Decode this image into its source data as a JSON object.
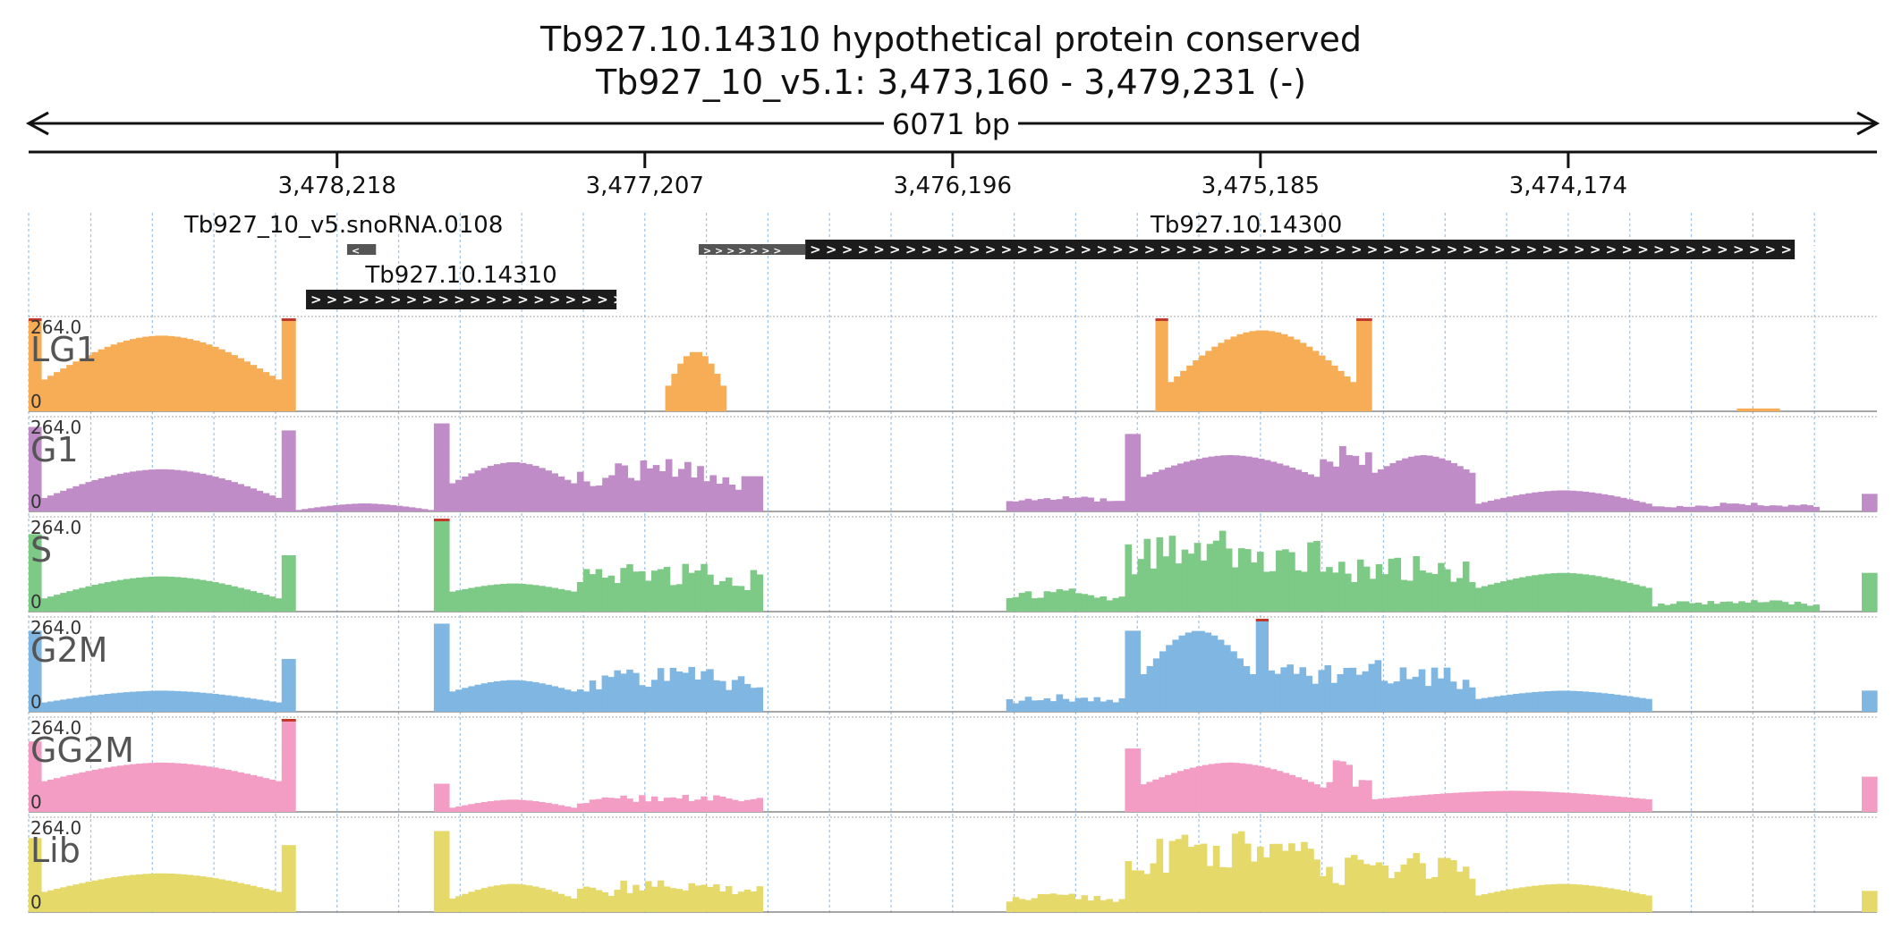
{
  "header": {
    "title": "Tb927.10.14310  hypothetical protein  conserved",
    "locus": "Tb927_10_v5.1: 3,473,160 - 3,479,231 (-)",
    "span": "6071 bp"
  },
  "ruler": {
    "ticks": [
      "3,478,218",
      "3,477,207",
      "3,476,196",
      "3,475,185",
      "3,474,174"
    ]
  },
  "features": [
    {
      "name": "Tb927_10_v5.snoRNA.0108",
      "row": 1,
      "start": 3478185,
      "end": 3478090,
      "color": "#555555",
      "strand": "-"
    },
    {
      "name": "Tb927.10.14310",
      "row": 2,
      "start": 3478320,
      "end": 3477300,
      "color": "#1c1c1c",
      "strand": "+"
    },
    {
      "name": "",
      "row": 1,
      "start": 3477030,
      "end": 3476680,
      "color": "#555555",
      "strand": "+"
    },
    {
      "name": "Tb927.10.14300",
      "row": 1,
      "start": 3476680,
      "end": 3473430,
      "color": "#1c1c1c",
      "strand": "+"
    }
  ],
  "chart_data": {
    "type": "area",
    "xrange": [
      3479231,
      3473160
    ],
    "ymax_label": "264.0",
    "ymin_label": "0",
    "ylim": [
      0,
      264
    ],
    "tracks": [
      {
        "name": "LG1",
        "color": "#f6ad55",
        "segments": [
          {
            "start": 3479231,
            "end": 3479190,
            "base": 264,
            "peak": 0,
            "shape": "flat"
          },
          {
            "start": 3479190,
            "end": 3478400,
            "base": 90,
            "peak": 125,
            "shape": "hump"
          },
          {
            "start": 3478400,
            "end": 3478355,
            "base": 264,
            "peak": 0,
            "shape": "flat"
          },
          {
            "start": 3477140,
            "end": 3476940,
            "base": 60,
            "peak": 110,
            "shape": "hump"
          },
          {
            "start": 3475530,
            "end": 3475490,
            "base": 264,
            "peak": 0,
            "shape": "flat"
          },
          {
            "start": 3475490,
            "end": 3474870,
            "base": 80,
            "peak": 150,
            "shape": "hump"
          },
          {
            "start": 3474870,
            "end": 3474820,
            "base": 264,
            "peak": 0,
            "shape": "flat"
          },
          {
            "start": 3473620,
            "end": 3473480,
            "base": 8,
            "peak": 0,
            "shape": "flat"
          }
        ]
      },
      {
        "name": "G1",
        "color": "#c08cc8",
        "segments": [
          {
            "start": 3479231,
            "end": 3479190,
            "base": 240,
            "peak": 0,
            "shape": "flat"
          },
          {
            "start": 3479190,
            "end": 3478400,
            "base": 40,
            "peak": 80,
            "shape": "hump"
          },
          {
            "start": 3478400,
            "end": 3478355,
            "base": 230,
            "peak": 0,
            "shape": "flat"
          },
          {
            "start": 3478355,
            "end": 3477900,
            "base": 8,
            "peak": 15,
            "shape": "hump"
          },
          {
            "start": 3477900,
            "end": 3477850,
            "base": 250,
            "peak": 0,
            "shape": "flat"
          },
          {
            "start": 3477850,
            "end": 3477430,
            "base": 80,
            "peak": 60,
            "shape": "hump"
          },
          {
            "start": 3477430,
            "end": 3476890,
            "base": 120,
            "peak": 60,
            "shape": "spiky"
          },
          {
            "start": 3476890,
            "end": 3476820,
            "base": 100,
            "peak": 0,
            "shape": "flat"
          },
          {
            "start": 3476020,
            "end": 3475630,
            "base": 30,
            "peak": 40,
            "shape": "spiky"
          },
          {
            "start": 3475630,
            "end": 3475580,
            "base": 220,
            "peak": 0,
            "shape": "flat"
          },
          {
            "start": 3475580,
            "end": 3474990,
            "base": 100,
            "peak": 60,
            "shape": "hump"
          },
          {
            "start": 3474990,
            "end": 3474820,
            "base": 200,
            "peak": 40,
            "shape": "spiky"
          },
          {
            "start": 3474820,
            "end": 3474480,
            "base": 110,
            "peak": 50,
            "shape": "hump"
          },
          {
            "start": 3474480,
            "end": 3473900,
            "base": 25,
            "peak": 35,
            "shape": "hump"
          },
          {
            "start": 3473900,
            "end": 3473350,
            "base": 20,
            "peak": 10,
            "shape": "spiky"
          },
          {
            "start": 3473210,
            "end": 3473160,
            "base": 50,
            "peak": 0,
            "shape": "flat"
          }
        ]
      },
      {
        "name": "S",
        "color": "#7dc986",
        "segments": [
          {
            "start": 3479231,
            "end": 3479190,
            "base": 220,
            "peak": 0,
            "shape": "flat"
          },
          {
            "start": 3479190,
            "end": 3478400,
            "base": 40,
            "peak": 60,
            "shape": "hump"
          },
          {
            "start": 3478400,
            "end": 3478355,
            "base": 160,
            "peak": 0,
            "shape": "flat"
          },
          {
            "start": 3477900,
            "end": 3477850,
            "base": 264,
            "peak": 0,
            "shape": "flat"
          },
          {
            "start": 3477850,
            "end": 3477430,
            "base": 60,
            "peak": 20,
            "shape": "hump"
          },
          {
            "start": 3477430,
            "end": 3476820,
            "base": 120,
            "peak": 40,
            "shape": "spiky"
          },
          {
            "start": 3476020,
            "end": 3475630,
            "base": 50,
            "peak": 40,
            "shape": "spiky"
          },
          {
            "start": 3475630,
            "end": 3474990,
            "base": 200,
            "peak": 60,
            "shape": "spiky"
          },
          {
            "start": 3474990,
            "end": 3474480,
            "base": 140,
            "peak": 40,
            "shape": "spiky"
          },
          {
            "start": 3474480,
            "end": 3473900,
            "base": 70,
            "peak": 40,
            "shape": "hump"
          },
          {
            "start": 3473900,
            "end": 3473350,
            "base": 25,
            "peak": 20,
            "shape": "spiky"
          },
          {
            "start": 3473210,
            "end": 3473160,
            "base": 110,
            "peak": 0,
            "shape": "flat"
          }
        ]
      },
      {
        "name": "G2M",
        "color": "#7fb6e2",
        "segments": [
          {
            "start": 3479231,
            "end": 3479190,
            "base": 230,
            "peak": 0,
            "shape": "flat"
          },
          {
            "start": 3479190,
            "end": 3478400,
            "base": 30,
            "peak": 30,
            "shape": "hump"
          },
          {
            "start": 3478400,
            "end": 3478355,
            "base": 150,
            "peak": 0,
            "shape": "flat"
          },
          {
            "start": 3477900,
            "end": 3477850,
            "base": 250,
            "peak": 0,
            "shape": "flat"
          },
          {
            "start": 3477850,
            "end": 3477430,
            "base": 60,
            "peak": 30,
            "shape": "hump"
          },
          {
            "start": 3477430,
            "end": 3476820,
            "base": 110,
            "peak": 40,
            "shape": "spiky"
          },
          {
            "start": 3476020,
            "end": 3475630,
            "base": 40,
            "peak": 20,
            "shape": "spiky"
          },
          {
            "start": 3475630,
            "end": 3475580,
            "base": 230,
            "peak": 0,
            "shape": "flat"
          },
          {
            "start": 3475580,
            "end": 3475200,
            "base": 100,
            "peak": 130,
            "shape": "hump"
          },
          {
            "start": 3475200,
            "end": 3475160,
            "base": 264,
            "peak": 0,
            "shape": "flat"
          },
          {
            "start": 3475160,
            "end": 3474480,
            "base": 130,
            "peak": 40,
            "shape": "spiky"
          },
          {
            "start": 3474480,
            "end": 3473900,
            "base": 40,
            "peak": 20,
            "shape": "hump"
          },
          {
            "start": 3473210,
            "end": 3473160,
            "base": 60,
            "peak": 0,
            "shape": "flat"
          }
        ]
      },
      {
        "name": "GG2M",
        "color": "#f39dc4",
        "segments": [
          {
            "start": 3479231,
            "end": 3479190,
            "base": 200,
            "peak": 0,
            "shape": "flat"
          },
          {
            "start": 3479190,
            "end": 3478400,
            "base": 90,
            "peak": 50,
            "shape": "hump"
          },
          {
            "start": 3478400,
            "end": 3478355,
            "base": 264,
            "peak": 0,
            "shape": "flat"
          },
          {
            "start": 3477900,
            "end": 3477850,
            "base": 80,
            "peak": 0,
            "shape": "flat"
          },
          {
            "start": 3477850,
            "end": 3477430,
            "base": 15,
            "peak": 20,
            "shape": "hump"
          },
          {
            "start": 3477430,
            "end": 3476820,
            "base": 40,
            "peak": 20,
            "shape": "spiky"
          },
          {
            "start": 3475630,
            "end": 3475580,
            "base": 180,
            "peak": 0,
            "shape": "flat"
          },
          {
            "start": 3475580,
            "end": 3474990,
            "base": 80,
            "peak": 60,
            "shape": "hump"
          },
          {
            "start": 3474990,
            "end": 3474820,
            "base": 140,
            "peak": 20,
            "shape": "spiky"
          },
          {
            "start": 3474820,
            "end": 3473900,
            "base": 40,
            "peak": 20,
            "shape": "hump"
          },
          {
            "start": 3473210,
            "end": 3473160,
            "base": 100,
            "peak": 0,
            "shape": "flat"
          }
        ]
      },
      {
        "name": "Lib",
        "color": "#e5d96a",
        "segments": [
          {
            "start": 3479231,
            "end": 3479190,
            "base": 210,
            "peak": 0,
            "shape": "flat"
          },
          {
            "start": 3479190,
            "end": 3478400,
            "base": 60,
            "peak": 50,
            "shape": "hump"
          },
          {
            "start": 3478400,
            "end": 3478355,
            "base": 190,
            "peak": 0,
            "shape": "flat"
          },
          {
            "start": 3477900,
            "end": 3477850,
            "base": 230,
            "peak": 0,
            "shape": "flat"
          },
          {
            "start": 3477850,
            "end": 3477430,
            "base": 40,
            "peak": 40,
            "shape": "hump"
          },
          {
            "start": 3477430,
            "end": 3476820,
            "base": 80,
            "peak": 30,
            "shape": "spiky"
          },
          {
            "start": 3476020,
            "end": 3475630,
            "base": 40,
            "peak": 30,
            "shape": "spiky"
          },
          {
            "start": 3475630,
            "end": 3474990,
            "base": 200,
            "peak": 64,
            "shape": "spiky"
          },
          {
            "start": 3474990,
            "end": 3474480,
            "base": 150,
            "peak": 40,
            "shape": "spiky"
          },
          {
            "start": 3474480,
            "end": 3473900,
            "base": 50,
            "peak": 30,
            "shape": "hump"
          },
          {
            "start": 3473210,
            "end": 3473160,
            "base": 60,
            "peak": 0,
            "shape": "flat"
          }
        ]
      }
    ]
  }
}
